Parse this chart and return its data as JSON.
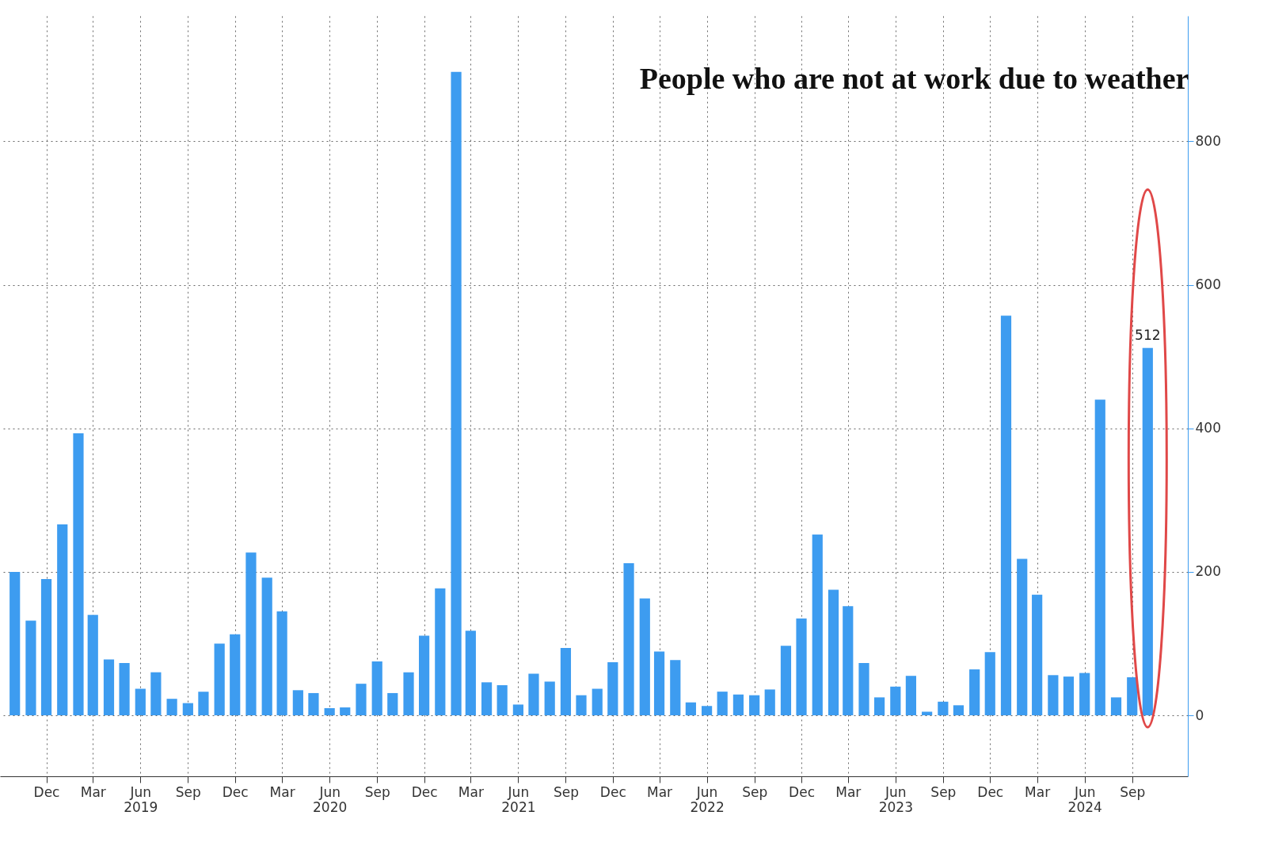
{
  "chart_data": {
    "type": "bar",
    "title": "People who are not at work due to weather",
    "x": [
      "2018-10",
      "2018-11",
      "2018-12",
      "2019-01",
      "2019-02",
      "2019-03",
      "2019-04",
      "2019-05",
      "2019-06",
      "2019-07",
      "2019-08",
      "2019-09",
      "2019-10",
      "2019-11",
      "2019-12",
      "2020-01",
      "2020-02",
      "2020-03",
      "2020-04",
      "2020-05",
      "2020-06",
      "2020-07",
      "2020-08",
      "2020-09",
      "2020-10",
      "2020-11",
      "2020-12",
      "2021-01",
      "2021-02",
      "2021-03",
      "2021-04",
      "2021-05",
      "2021-06",
      "2021-07",
      "2021-08",
      "2021-09",
      "2021-10",
      "2021-11",
      "2021-12",
      "2022-01",
      "2022-02",
      "2022-03",
      "2022-04",
      "2022-05",
      "2022-06",
      "2022-07",
      "2022-08",
      "2022-09",
      "2022-10",
      "2022-11",
      "2022-12",
      "2023-01",
      "2023-02",
      "2023-03",
      "2023-04",
      "2023-05",
      "2023-06",
      "2023-07",
      "2023-08",
      "2023-09",
      "2023-10",
      "2023-11",
      "2023-12",
      "2024-01",
      "2024-02",
      "2024-03",
      "2024-04",
      "2024-05",
      "2024-06",
      "2024-07",
      "2024-08",
      "2024-09",
      "2024-10"
    ],
    "values": [
      200,
      132,
      190,
      266,
      393,
      140,
      78,
      73,
      37,
      60,
      23,
      17,
      33,
      100,
      113,
      227,
      192,
      145,
      35,
      31,
      10,
      11,
      44,
      75,
      31,
      60,
      111,
      177,
      897,
      118,
      46,
      42,
      15,
      58,
      47,
      94,
      28,
      37,
      74,
      212,
      163,
      89,
      77,
      18,
      13,
      33,
      29,
      28,
      36,
      97,
      135,
      252,
      175,
      152,
      73,
      25,
      40,
      55,
      5,
      19,
      14,
      64,
      88,
      557,
      218,
      168,
      56,
      54,
      59,
      440,
      25,
      53,
      512
    ],
    "value_labels": [
      null,
      null,
      null,
      null,
      null,
      null,
      null,
      null,
      null,
      null,
      null,
      null,
      null,
      null,
      null,
      null,
      null,
      null,
      null,
      null,
      null,
      null,
      null,
      null,
      null,
      null,
      null,
      null,
      null,
      null,
      null,
      null,
      null,
      null,
      null,
      null,
      null,
      null,
      null,
      null,
      null,
      null,
      null,
      null,
      null,
      null,
      null,
      null,
      null,
      null,
      null,
      null,
      null,
      null,
      null,
      null,
      null,
      null,
      null,
      null,
      null,
      null,
      null,
      null,
      null,
      null,
      null,
      null,
      null,
      null,
      null,
      null,
      "512"
    ],
    "color": "#3d9cf0",
    "xlim": [
      "2018-09-10",
      "2024-12-10"
    ],
    "xticks": [
      {
        "value": "2018-12",
        "label": "Dec"
      },
      {
        "value": "2019-03",
        "label": "Mar"
      },
      {
        "value": "2019-06",
        "label": "Jun\n2019"
      },
      {
        "value": "2019-09",
        "label": "Sep"
      },
      {
        "value": "2019-12",
        "label": "Dec"
      },
      {
        "value": "2020-03",
        "label": "Mar"
      },
      {
        "value": "2020-06",
        "label": "Jun\n2020"
      },
      {
        "value": "2020-09",
        "label": "Sep"
      },
      {
        "value": "2020-12",
        "label": "Dec"
      },
      {
        "value": "2021-03",
        "label": "Mar"
      },
      {
        "value": "2021-06",
        "label": "Jun\n2021"
      },
      {
        "value": "2021-09",
        "label": "Sep"
      },
      {
        "value": "2021-12",
        "label": "Dec"
      },
      {
        "value": "2022-03",
        "label": "Mar"
      },
      {
        "value": "2022-06",
        "label": "Jun\n2022"
      },
      {
        "value": "2022-09",
        "label": "Sep"
      },
      {
        "value": "2022-12",
        "label": "Dec"
      },
      {
        "value": "2023-03",
        "label": "Mar"
      },
      {
        "value": "2023-06",
        "label": "Jun\n2023"
      },
      {
        "value": "2023-09",
        "label": "Sep"
      },
      {
        "value": "2023-12",
        "label": "Dec"
      },
      {
        "value": "2024-03",
        "label": "Mar"
      },
      {
        "value": "2024-06",
        "label": "Jun\n2024"
      },
      {
        "value": "2024-09",
        "label": "Sep"
      }
    ],
    "ylim": [
      -85,
      975
    ],
    "yticks": [
      0,
      200,
      400,
      600,
      800
    ],
    "grid": true
  }
}
